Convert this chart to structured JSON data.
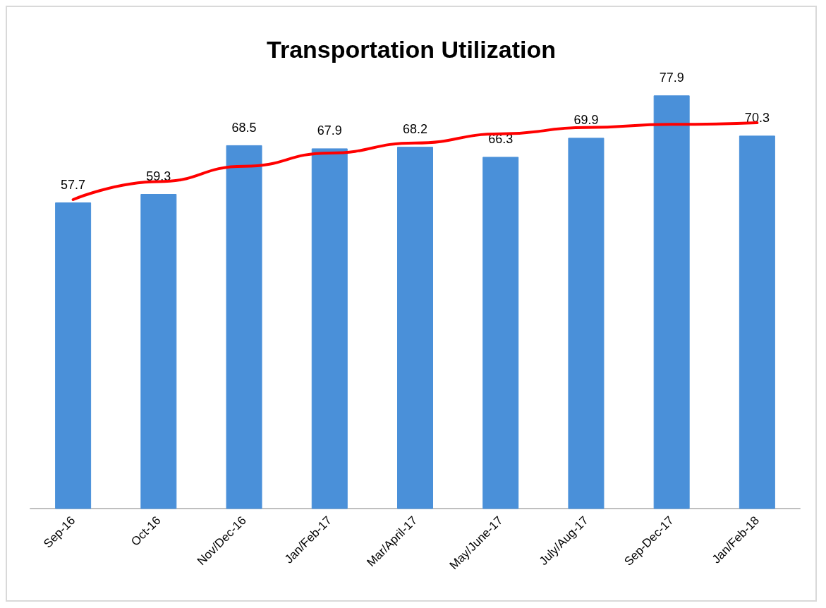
{
  "chart_data": {
    "type": "bar",
    "title": "Transportation Utilization",
    "categories": [
      "Sep-16",
      "Oct-16",
      "Nov/Dec-16",
      "Jan/Feb-17",
      "Mar/April-17",
      "May/June-17",
      "July/Aug-17",
      "Sep-Dec-17",
      "Jan/Feb-18"
    ],
    "series": [
      {
        "color": "#4a90d9",
        "values": [
          57.7,
          59.3,
          68.5,
          67.9,
          68.2,
          66.3,
          69.9,
          77.9,
          70.3
        ],
        "value_labels": [
          "57.7",
          "59.3",
          "68.5",
          "67.9",
          "68.2",
          "66.3",
          "69.9",
          "77.9",
          "70.3"
        ]
      },
      {
        "type": "line",
        "color": "#ff0000",
        "marker": "none",
        "line_style": "solid",
        "x": [
          "Sep-16",
          "Oct-16",
          "Nov/Dec-16",
          "Jan/Feb-17",
          "Mar/April-17",
          "May/June-17",
          "July/Aug-17",
          "Sep-Dec-17",
          "Jan/Feb-18"
        ],
        "values": [
          58.3,
          61.7,
          64.6,
          67.1,
          69.0,
          70.7,
          71.9,
          72.5,
          72.8
        ]
      }
    ],
    "grid": false
  }
}
